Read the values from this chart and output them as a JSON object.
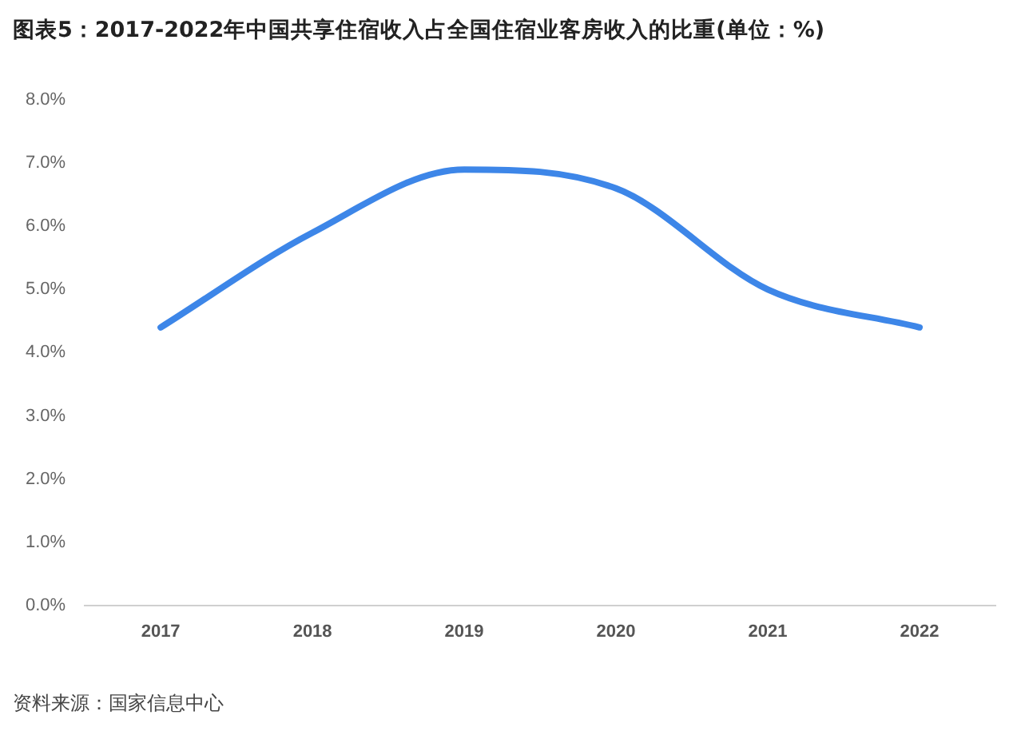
{
  "chart_data": {
    "type": "line",
    "title": "图表5：2017-2022年中国共享住宿收入占全国住宿业客房收入的比重(单位：%)",
    "categories": [
      "2017",
      "2018",
      "2019",
      "2020",
      "2021",
      "2022"
    ],
    "series": [
      {
        "color": "#3d86e8",
        "values": [
          4.4,
          5.9,
          6.9,
          6.6,
          5.0,
          4.4
        ]
      }
    ],
    "ylim": [
      0,
      8
    ],
    "yticks": [
      {
        "value": 0,
        "label": "0.0%"
      },
      {
        "value": 1,
        "label": "1.0%"
      },
      {
        "value": 2,
        "label": "2.0%"
      },
      {
        "value": 3,
        "label": "3.0%"
      },
      {
        "value": 4,
        "label": "4.0%"
      },
      {
        "value": 5,
        "label": "5.0%"
      },
      {
        "value": 6,
        "label": "6.0%"
      },
      {
        "value": 7,
        "label": "7.0%"
      },
      {
        "value": 8,
        "label": "8.0%"
      }
    ],
    "grid": false,
    "legend": false,
    "marker": "none",
    "line_style": "solid",
    "annotations": [
      "资料来源：国家信息中心"
    ]
  }
}
